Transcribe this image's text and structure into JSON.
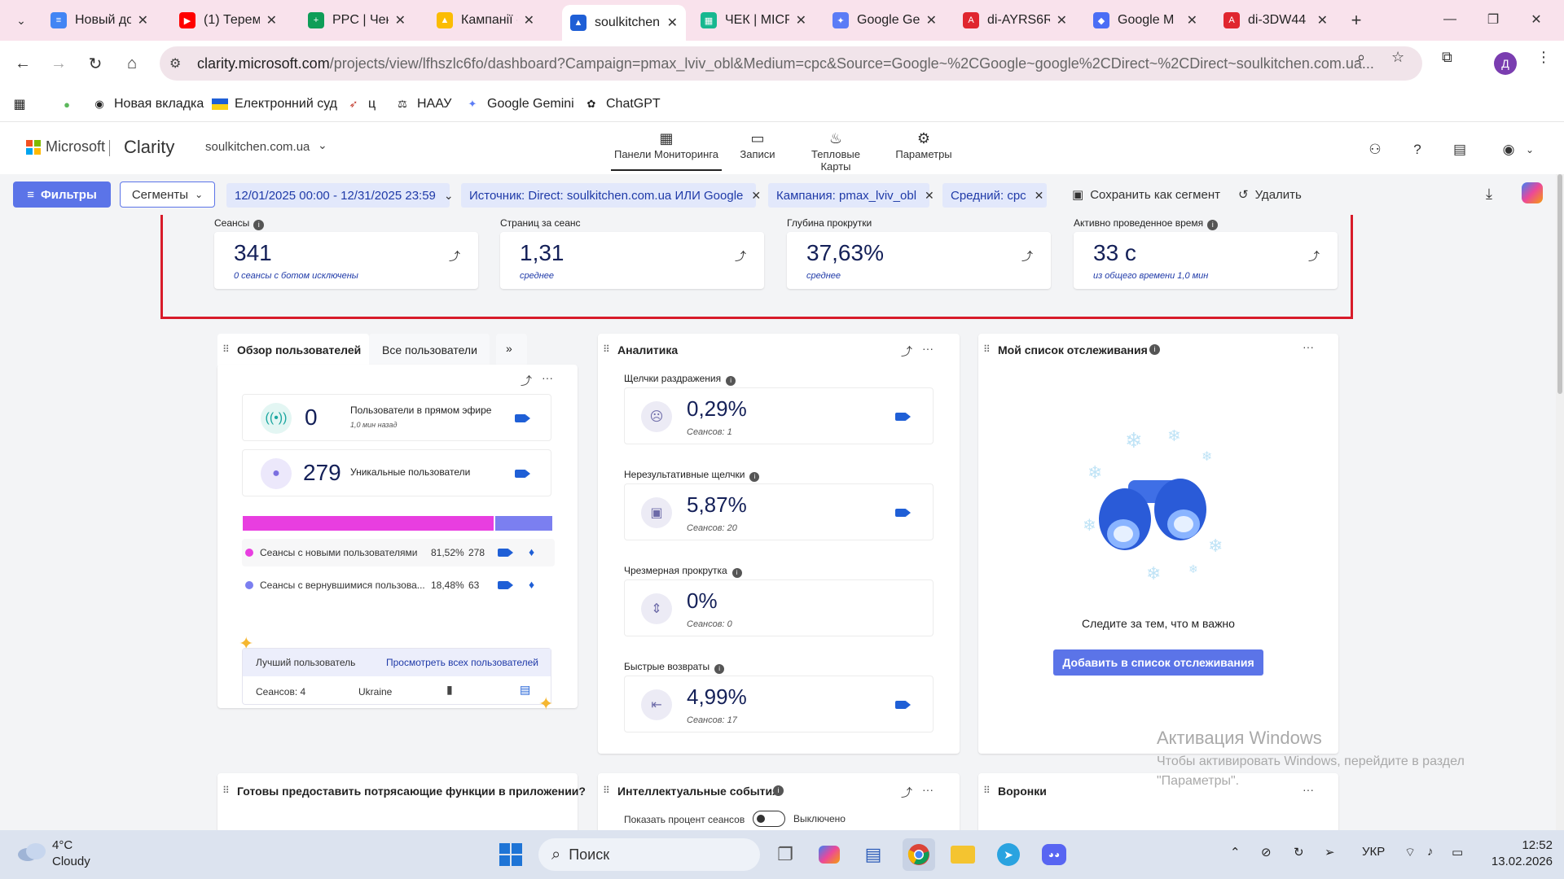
{
  "browser": {
    "tabs": [
      {
        "title": "Новый до",
        "favicon": "docs-icon",
        "color": "#4285f4"
      },
      {
        "title": "(1) Терем",
        "favicon": "youtube-icon",
        "color": "#ff0000"
      },
      {
        "title": "PPC | Чек-",
        "favicon": "sheets-icon",
        "color": "#0f9d58"
      },
      {
        "title": "Кампанії -",
        "favicon": "google-ads-icon",
        "color": "#4285f4"
      },
      {
        "title": "soulkitchen",
        "favicon": "clarity-icon",
        "color": "#1f5fd6",
        "active": true
      },
      {
        "title": "ЧЕК | МІСР",
        "favicon": "sheet-green-icon",
        "color": "#17b890"
      },
      {
        "title": "Google Ge",
        "favicon": "gemini-icon",
        "color": "#5b7cf6"
      },
      {
        "title": "di-AYRS6R",
        "favicon": "pdf-icon",
        "color": "#e0262f"
      },
      {
        "title": "Google M",
        "favicon": "merchant-icon",
        "color": "#4b6ef5"
      },
      {
        "title": "di-3DW44",
        "favicon": "pdf-icon",
        "color": "#e0262f"
      }
    ],
    "url_main": "clarity.microsoft.com",
    "url_rest": "/projects/view/lfhszlc6fo/dashboard?Campaign=pmax_lviv_obl&Medium=cpc&Source=Google~%2CGoogle~google%2CDirect~%2CDirect~soulkitchen.com.ua...",
    "profile_initial": "Д",
    "bookmarks": [
      {
        "label": "",
        "icon": "utorrent-icon"
      },
      {
        "label": "Новая вкладка",
        "icon": "globe-icon"
      },
      {
        "label": "Електронний суд",
        "icon": "ua-flag-icon"
      },
      {
        "label": "ц",
        "icon": "bookmark-icon"
      },
      {
        "label": "НААУ",
        "icon": "naau-icon"
      },
      {
        "label": "Google Gemini",
        "icon": "gemini-icon"
      },
      {
        "label": "ChatGPT",
        "icon": "chatgpt-icon"
      }
    ]
  },
  "clarity": {
    "brand": "Microsoft",
    "product": "Clarity",
    "project": "soulkitchen.com.ua",
    "nav": [
      {
        "label": "Панели Мониторинга",
        "active": true
      },
      {
        "label": "Записи"
      },
      {
        "label": "Тепловые Карты"
      },
      {
        "label": "Параметры"
      }
    ],
    "filters": {
      "filters_label": "Фильтры",
      "segments_label": "Сегменты",
      "date_range": "12/01/2025 00:00 - 12/31/2025 23:59",
      "source_chip": "Источник: Direct: soulkitchen.com.ua ИЛИ Google",
      "campaign_chip": "Кампания: pmax_lviv_obl",
      "medium_chip": "Средний: cpc",
      "save_segment": "Сохранить как сегмент",
      "delete": "Удалить"
    },
    "metrics": [
      {
        "label": "Сеансы",
        "value": "341",
        "sub": "0 сеансы с ботом исключены",
        "has_info": true
      },
      {
        "label": "Страниц за сеанс",
        "value": "1,31",
        "sub": "среднее",
        "has_info": false
      },
      {
        "label": "Глубина прокрутки",
        "value": "37,63%",
        "sub": "среднее",
        "has_info": false
      },
      {
        "label": "Активно проведенное время",
        "value": "33 с",
        "sub": "из общего времени 1,0 мин",
        "has_info": true
      }
    ],
    "users_card": {
      "tab_overview": "Обзор пользователей",
      "tab_all": "Все пользователи",
      "live_value": "0",
      "live_label": "Пользователи в прямом эфире",
      "live_sub": "1,0 мин назад",
      "unique_value": "279",
      "unique_label": "Уникальные пользователи",
      "new_share": 81.52,
      "new_label": "Сеансы с новыми пользователями",
      "new_pct": "81,52%",
      "new_count": "278",
      "ret_label": "Сеансы с вернувшимися пользова...",
      "ret_pct": "18,48%",
      "ret_count": "63",
      "best_user_title": "Лучший пользователь",
      "view_all": "Просмотреть всех пользователей",
      "best_sessions": "Сеансов: 4",
      "best_country": "Ukraine",
      "colors": {
        "new": "#e83ee0",
        "returning": "#7b7ff0"
      }
    },
    "analytics": {
      "title": "Аналитика",
      "items": [
        {
          "label": "Щелчки раздражения",
          "value": "0,29%",
          "sub": "Сеансов: 1",
          "icon": "angry-face-icon"
        },
        {
          "label": "Нерезультативные щелчки",
          "value": "5,87%",
          "sub": "Сеансов: 20",
          "icon": "dead-click-icon"
        },
        {
          "label": "Чрезмерная прокрутка",
          "value": "0%",
          "sub": "Сеансов: 0",
          "icon": "scroll-icon"
        },
        {
          "label": "Быстрые возвраты",
          "value": "4,99%",
          "sub": "Сеансов: 17",
          "icon": "quick-back-icon"
        }
      ]
    },
    "watchlist": {
      "title": "Мой список отслеживания",
      "empty_text": "Следите за тем, что м важно",
      "add_button": "Добавить в список отслеживания"
    },
    "bottom_cards": {
      "app_title": "Готовы предоставить потрясающие функции в приложении?",
      "smart_events": "Интеллектуальные события",
      "show_percent": "Показать процент сеансов",
      "toggle_state": "Выключено",
      "funnels": "Воронки"
    }
  },
  "windows": {
    "activate_title": "Активация Windows",
    "activate_line1": "Чтобы активировать Windows, перейдите в раздел",
    "activate_line2": "\"Параметры\".",
    "weather_temp": "4°C",
    "weather_desc": "Cloudy",
    "search": "Поиск",
    "lang": "УКР",
    "time": "12:52",
    "date": "13.02.2026"
  }
}
